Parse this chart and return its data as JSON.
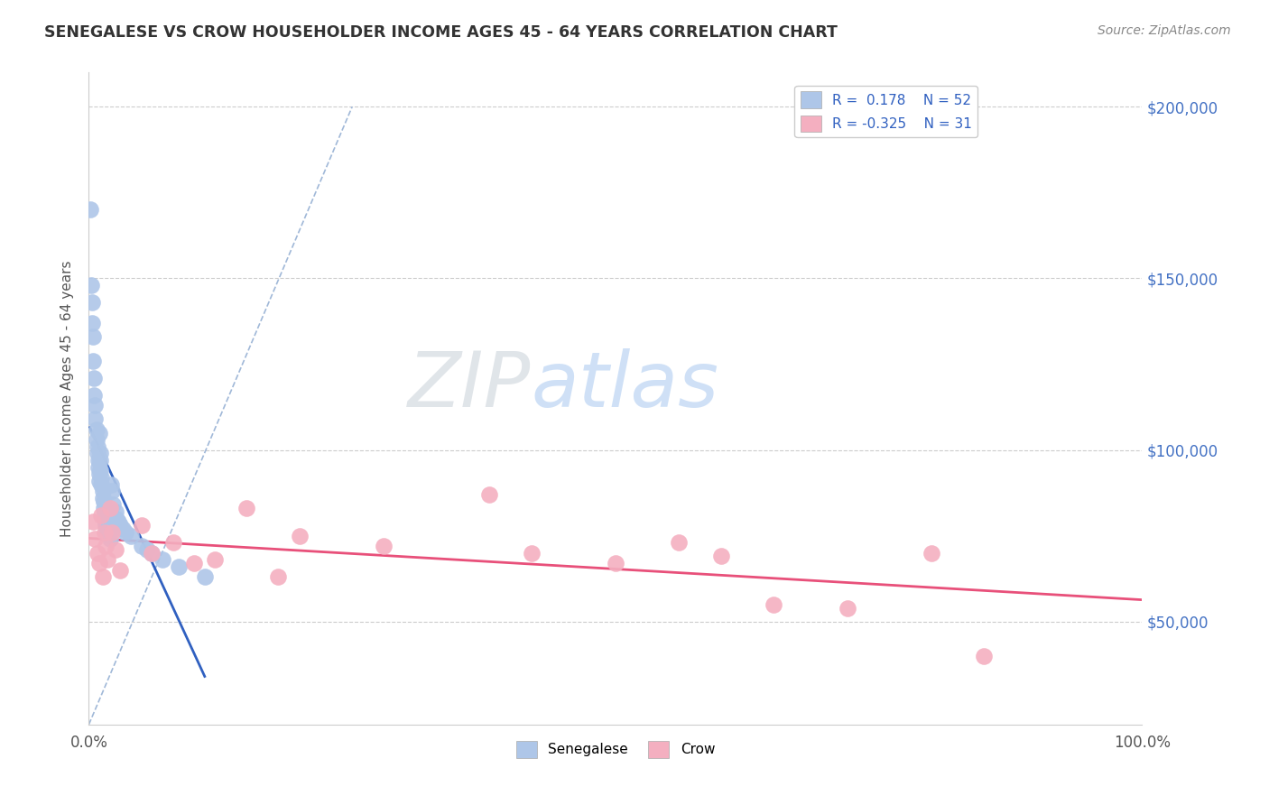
{
  "title": "SENEGALESE VS CROW HOUSEHOLDER INCOME AGES 45 - 64 YEARS CORRELATION CHART",
  "source": "Source: ZipAtlas.com",
  "ylabel": "Householder Income Ages 45 - 64 years",
  "xlim": [
    0,
    1.0
  ],
  "ylim": [
    20000,
    210000
  ],
  "ytick_positions": [
    50000,
    100000,
    150000,
    200000
  ],
  "ytick_labels": [
    "$50,000",
    "$100,000",
    "$150,000",
    "$200,000"
  ],
  "senegalese_R": 0.178,
  "senegalese_N": 52,
  "crow_R": -0.325,
  "crow_N": 31,
  "blue_color": "#aec6e8",
  "pink_color": "#f4afc0",
  "blue_line_color": "#3060c0",
  "pink_line_color": "#e8507a",
  "ref_line_color": "#a0b8d8",
  "background_color": "#ffffff",
  "grid_color": "#cccccc",
  "watermark_zip_color": "#d0d8e0",
  "watermark_atlas_color": "#a8c8f0",
  "senegalese_x": [
    0.001,
    0.002,
    0.003,
    0.003,
    0.004,
    0.004,
    0.005,
    0.005,
    0.006,
    0.006,
    0.007,
    0.007,
    0.008,
    0.008,
    0.009,
    0.009,
    0.01,
    0.01,
    0.01,
    0.011,
    0.011,
    0.011,
    0.012,
    0.012,
    0.013,
    0.013,
    0.014,
    0.014,
    0.015,
    0.015,
    0.016,
    0.016,
    0.017,
    0.018,
    0.019,
    0.02,
    0.021,
    0.022,
    0.023,
    0.025,
    0.026,
    0.028,
    0.03,
    0.032,
    0.035,
    0.04,
    0.05,
    0.055,
    0.06,
    0.07,
    0.085,
    0.11
  ],
  "senegalese_y": [
    170000,
    148000,
    143000,
    137000,
    133000,
    126000,
    121000,
    116000,
    113000,
    109000,
    106000,
    103000,
    101000,
    99000,
    97000,
    95000,
    93000,
    91000,
    105000,
    99000,
    97000,
    94000,
    92000,
    90000,
    88000,
    86000,
    85000,
    83000,
    82000,
    80000,
    79000,
    78000,
    77000,
    76000,
    75000,
    74000,
    90000,
    88000,
    84000,
    82000,
    80000,
    79000,
    78000,
    77000,
    76000,
    75000,
    72000,
    71000,
    70000,
    68000,
    66000,
    63000
  ],
  "crow_x": [
    0.004,
    0.006,
    0.008,
    0.01,
    0.012,
    0.013,
    0.015,
    0.016,
    0.018,
    0.02,
    0.022,
    0.025,
    0.03,
    0.05,
    0.06,
    0.08,
    0.1,
    0.12,
    0.15,
    0.18,
    0.2,
    0.28,
    0.38,
    0.42,
    0.5,
    0.56,
    0.6,
    0.65,
    0.72,
    0.8,
    0.85
  ],
  "crow_y": [
    79000,
    74000,
    70000,
    67000,
    81000,
    63000,
    76000,
    72000,
    68000,
    83000,
    76000,
    71000,
    65000,
    78000,
    70000,
    73000,
    67000,
    68000,
    83000,
    63000,
    75000,
    72000,
    87000,
    70000,
    67000,
    73000,
    69000,
    55000,
    54000,
    70000,
    40000
  ]
}
